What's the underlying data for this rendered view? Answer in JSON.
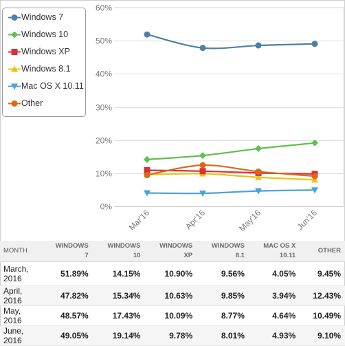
{
  "chart_data": {
    "type": "line",
    "categories": [
      "Mar'16",
      "Apr'16",
      "May'16",
      "Jun'16"
    ],
    "ylim": [
      0,
      60
    ],
    "yticks": [
      "0%",
      "10%",
      "20%",
      "30%",
      "40%",
      "50%",
      "60%"
    ],
    "grid": true,
    "legend_position": "top-left",
    "series": [
      {
        "name": "Windows 7",
        "color": "#4e7fa6",
        "marker": "circle",
        "values": [
          51.89,
          47.82,
          48.57,
          49.05
        ]
      },
      {
        "name": "Windows 10",
        "color": "#5fbf4f",
        "marker": "diamond",
        "values": [
          14.15,
          15.34,
          17.43,
          19.14
        ]
      },
      {
        "name": "Windows XP",
        "color": "#d9303a",
        "marker": "square",
        "values": [
          10.9,
          10.63,
          10.09,
          9.78
        ]
      },
      {
        "name": "Windows 8.1",
        "color": "#f0c10f",
        "marker": "triangle-up",
        "values": [
          9.56,
          9.85,
          8.77,
          8.01
        ]
      },
      {
        "name": "Mac OS X 10.11",
        "color": "#4aa3d8",
        "marker": "triangle-down",
        "values": [
          4.05,
          3.94,
          4.64,
          4.93
        ]
      },
      {
        "name": "Other",
        "color": "#d96a15",
        "marker": "circle",
        "values": [
          9.45,
          12.43,
          10.49,
          9.1
        ]
      }
    ]
  },
  "table": {
    "headers": [
      {
        "line1": "MONTH",
        "line2": ""
      },
      {
        "line1": "WINDOWS",
        "line2": "7"
      },
      {
        "line1": "WINDOWS",
        "line2": "10"
      },
      {
        "line1": "WINDOWS",
        "line2": "XP"
      },
      {
        "line1": "WINDOWS",
        "line2": "8.1"
      },
      {
        "line1": "MAC OS X",
        "line2": "10.11"
      },
      {
        "line1": "OTHER",
        "line2": ""
      }
    ],
    "rows": [
      {
        "month": "March, 2016",
        "cells": [
          "51.89%",
          "14.15%",
          "10.90%",
          "9.56%",
          "4.05%",
          "9.45%"
        ]
      },
      {
        "month": "April, 2016",
        "cells": [
          "47.82%",
          "15.34%",
          "10.63%",
          "9.85%",
          "3.94%",
          "12.43%"
        ]
      },
      {
        "month": "May, 2016",
        "cells": [
          "48.57%",
          "17.43%",
          "10.09%",
          "8.77%",
          "4.64%",
          "10.49%"
        ]
      },
      {
        "month": "June, 2016",
        "cells": [
          "49.05%",
          "19.14%",
          "9.78%",
          "8.01%",
          "4.93%",
          "9.10%"
        ]
      }
    ]
  }
}
